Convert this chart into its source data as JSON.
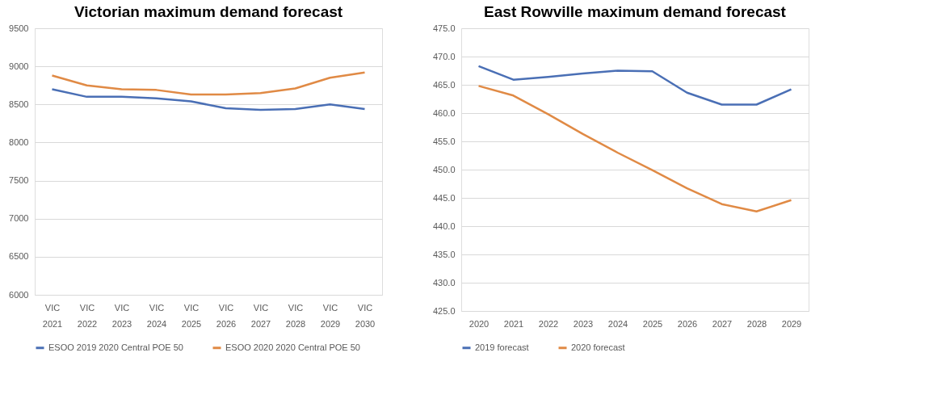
{
  "chart_data": [
    {
      "type": "line",
      "title": "Victorian maximum demand forecast",
      "categories": [
        "VIC 2021",
        "VIC 2022",
        "VIC 2023",
        "VIC 2024",
        "VIC 2025",
        "VIC 2026",
        "VIC 2027",
        "VIC 2028",
        "VIC 2029",
        "VIC 2030"
      ],
      "series": [
        {
          "name": "ESOO 2019 2020 Central POE 50",
          "color": "#4a6fb5",
          "values": [
            8700,
            8600,
            8600,
            8580,
            8540,
            8450,
            8430,
            8440,
            8500,
            8440
          ]
        },
        {
          "name": "ESOO 2020 2020 Central POE 50",
          "color": "#e08a45",
          "values": [
            8880,
            8750,
            8700,
            8690,
            8630,
            8630,
            8650,
            8710,
            8850,
            8920
          ]
        }
      ],
      "ylim": [
        6000,
        9500
      ],
      "yticks": [
        6000,
        6500,
        7000,
        7500,
        8000,
        8500,
        9000,
        9500
      ],
      "grid": "y",
      "legend": "bottom"
    },
    {
      "type": "line",
      "title": "East Rowville maximum demand forecast",
      "categories": [
        "2020",
        "2021",
        "2022",
        "2023",
        "2024",
        "2025",
        "2026",
        "2027",
        "2028",
        "2029"
      ],
      "series": [
        {
          "name": "2019 forecast",
          "color": "#4a6fb5",
          "values": [
            468.3,
            465.9,
            466.4,
            467.0,
            467.5,
            467.4,
            463.6,
            461.5,
            461.5,
            464.2
          ]
        },
        {
          "name": "2020 forecast",
          "color": "#e08a45",
          "values": [
            464.8,
            463.1,
            459.8,
            456.3,
            453.0,
            449.9,
            446.7,
            443.9,
            442.6,
            444.6
          ]
        }
      ],
      "ylim": [
        425,
        475
      ],
      "yticks": [
        {
          "value": 425,
          "label": "425.0"
        },
        {
          "value": 430,
          "label": "430.0"
        },
        {
          "value": 435,
          "label": "435.0"
        },
        {
          "value": 440,
          "label": "440.0"
        },
        {
          "value": 445,
          "label": "445.0"
        },
        {
          "value": 450,
          "label": "450.0"
        },
        {
          "value": 455,
          "label": "455.0"
        },
        {
          "value": 460,
          "label": "460.0"
        },
        {
          "value": 465,
          "label": "465.0"
        },
        {
          "value": 470,
          "label": "470.0"
        },
        {
          "value": 475,
          "label": "475.0"
        }
      ],
      "grid": "y",
      "legend": "bottom"
    }
  ]
}
